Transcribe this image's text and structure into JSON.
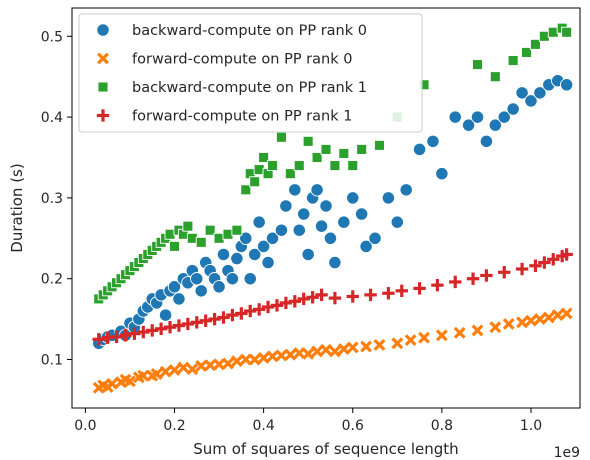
{
  "chart_data": {
    "type": "scatter",
    "xlabel": "Sum of squares of sequence length",
    "ylabel": "Duration (s)",
    "x_offset_label": "1e9",
    "xlim": [
      -0.03,
      1.11
    ],
    "ylim": [
      0.04,
      0.535
    ],
    "x_ticks": [
      0.0,
      0.2,
      0.4,
      0.6,
      0.8,
      1.0
    ],
    "x_tick_labels": [
      "0.0",
      "0.2",
      "0.4",
      "0.6",
      "0.8",
      "1.0"
    ],
    "y_ticks": [
      0.1,
      0.2,
      0.3,
      0.4,
      0.5
    ],
    "y_tick_labels": [
      "0.1",
      "0.2",
      "0.3",
      "0.4",
      "0.5"
    ],
    "legend_position": "upper-left",
    "series": [
      {
        "name": "backward-compute on PP rank 0",
        "marker": "circle",
        "color": "#1f77b4",
        "points": [
          [
            0.03,
            0.12
          ],
          [
            0.04,
            0.125
          ],
          [
            0.05,
            0.128
          ],
          [
            0.06,
            0.13
          ],
          [
            0.08,
            0.135
          ],
          [
            0.09,
            0.13
          ],
          [
            0.1,
            0.145
          ],
          [
            0.11,
            0.14
          ],
          [
            0.12,
            0.15
          ],
          [
            0.13,
            0.16
          ],
          [
            0.14,
            0.165
          ],
          [
            0.15,
            0.175
          ],
          [
            0.16,
            0.17
          ],
          [
            0.17,
            0.18
          ],
          [
            0.18,
            0.155
          ],
          [
            0.19,
            0.185
          ],
          [
            0.2,
            0.19
          ],
          [
            0.21,
            0.175
          ],
          [
            0.22,
            0.2
          ],
          [
            0.23,
            0.195
          ],
          [
            0.24,
            0.21
          ],
          [
            0.25,
            0.2
          ],
          [
            0.26,
            0.185
          ],
          [
            0.27,
            0.22
          ],
          [
            0.28,
            0.21
          ],
          [
            0.29,
            0.2
          ],
          [
            0.3,
            0.19
          ],
          [
            0.31,
            0.23
          ],
          [
            0.32,
            0.21
          ],
          [
            0.33,
            0.2
          ],
          [
            0.34,
            0.225
          ],
          [
            0.35,
            0.24
          ],
          [
            0.36,
            0.25
          ],
          [
            0.37,
            0.2
          ],
          [
            0.38,
            0.23
          ],
          [
            0.39,
            0.27
          ],
          [
            0.4,
            0.24
          ],
          [
            0.41,
            0.22
          ],
          [
            0.42,
            0.25
          ],
          [
            0.44,
            0.26
          ],
          [
            0.45,
            0.29
          ],
          [
            0.47,
            0.31
          ],
          [
            0.48,
            0.26
          ],
          [
            0.49,
            0.28
          ],
          [
            0.5,
            0.23
          ],
          [
            0.51,
            0.3
          ],
          [
            0.52,
            0.31
          ],
          [
            0.53,
            0.265
          ],
          [
            0.54,
            0.29
          ],
          [
            0.55,
            0.25
          ],
          [
            0.56,
            0.22
          ],
          [
            0.58,
            0.27
          ],
          [
            0.6,
            0.3
          ],
          [
            0.62,
            0.28
          ],
          [
            0.63,
            0.24
          ],
          [
            0.65,
            0.25
          ],
          [
            0.68,
            0.3
          ],
          [
            0.7,
            0.27
          ],
          [
            0.72,
            0.31
          ],
          [
            0.75,
            0.36
          ],
          [
            0.78,
            0.37
          ],
          [
            0.8,
            0.33
          ],
          [
            0.83,
            0.4
          ],
          [
            0.86,
            0.39
          ],
          [
            0.88,
            0.4
          ],
          [
            0.9,
            0.37
          ],
          [
            0.92,
            0.39
          ],
          [
            0.94,
            0.4
          ],
          [
            0.96,
            0.41
          ],
          [
            0.98,
            0.43
          ],
          [
            1.0,
            0.42
          ],
          [
            1.02,
            0.43
          ],
          [
            1.04,
            0.44
          ],
          [
            1.06,
            0.445
          ],
          [
            1.08,
            0.44
          ]
        ]
      },
      {
        "name": "forward-compute on PP rank 0",
        "marker": "x",
        "color": "#ff7f0e",
        "points": [
          [
            0.03,
            0.065
          ],
          [
            0.04,
            0.068
          ],
          [
            0.05,
            0.066
          ],
          [
            0.06,
            0.07
          ],
          [
            0.08,
            0.072
          ],
          [
            0.09,
            0.075
          ],
          [
            0.1,
            0.073
          ],
          [
            0.12,
            0.078
          ],
          [
            0.13,
            0.08
          ],
          [
            0.15,
            0.08
          ],
          [
            0.16,
            0.082
          ],
          [
            0.18,
            0.085
          ],
          [
            0.2,
            0.087
          ],
          [
            0.22,
            0.09
          ],
          [
            0.24,
            0.088
          ],
          [
            0.26,
            0.092
          ],
          [
            0.28,
            0.093
          ],
          [
            0.3,
            0.094
          ],
          [
            0.32,
            0.095
          ],
          [
            0.34,
            0.098
          ],
          [
            0.36,
            0.1
          ],
          [
            0.38,
            0.1
          ],
          [
            0.4,
            0.102
          ],
          [
            0.42,
            0.104
          ],
          [
            0.44,
            0.105
          ],
          [
            0.46,
            0.106
          ],
          [
            0.48,
            0.108
          ],
          [
            0.5,
            0.107
          ],
          [
            0.52,
            0.11
          ],
          [
            0.54,
            0.112
          ],
          [
            0.56,
            0.11
          ],
          [
            0.58,
            0.113
          ],
          [
            0.6,
            0.115
          ],
          [
            0.63,
            0.116
          ],
          [
            0.66,
            0.118
          ],
          [
            0.7,
            0.12
          ],
          [
            0.73,
            0.124
          ],
          [
            0.76,
            0.127
          ],
          [
            0.8,
            0.13
          ],
          [
            0.84,
            0.133
          ],
          [
            0.88,
            0.136
          ],
          [
            0.92,
            0.14
          ],
          [
            0.95,
            0.144
          ],
          [
            0.98,
            0.146
          ],
          [
            1.0,
            0.148
          ],
          [
            1.02,
            0.15
          ],
          [
            1.04,
            0.152
          ],
          [
            1.06,
            0.155
          ],
          [
            1.08,
            0.157
          ]
        ]
      },
      {
        "name": "backward-compute on PP rank 1",
        "marker": "square",
        "color": "#2ca02c",
        "points": [
          [
            0.03,
            0.175
          ],
          [
            0.04,
            0.18
          ],
          [
            0.05,
            0.185
          ],
          [
            0.06,
            0.19
          ],
          [
            0.07,
            0.195
          ],
          [
            0.08,
            0.2
          ],
          [
            0.09,
            0.205
          ],
          [
            0.1,
            0.21
          ],
          [
            0.11,
            0.215
          ],
          [
            0.12,
            0.22
          ],
          [
            0.13,
            0.225
          ],
          [
            0.14,
            0.23
          ],
          [
            0.15,
            0.235
          ],
          [
            0.16,
            0.24
          ],
          [
            0.17,
            0.245
          ],
          [
            0.18,
            0.25
          ],
          [
            0.19,
            0.255
          ],
          [
            0.2,
            0.24
          ],
          [
            0.21,
            0.26
          ],
          [
            0.22,
            0.255
          ],
          [
            0.23,
            0.265
          ],
          [
            0.24,
            0.25
          ],
          [
            0.26,
            0.245
          ],
          [
            0.28,
            0.26
          ],
          [
            0.3,
            0.25
          ],
          [
            0.32,
            0.255
          ],
          [
            0.34,
            0.26
          ],
          [
            0.36,
            0.31
          ],
          [
            0.37,
            0.33
          ],
          [
            0.38,
            0.32
          ],
          [
            0.39,
            0.335
          ],
          [
            0.4,
            0.35
          ],
          [
            0.41,
            0.33
          ],
          [
            0.42,
            0.34
          ],
          [
            0.44,
            0.375
          ],
          [
            0.46,
            0.33
          ],
          [
            0.48,
            0.34
          ],
          [
            0.5,
            0.37
          ],
          [
            0.52,
            0.35
          ],
          [
            0.54,
            0.36
          ],
          [
            0.56,
            0.34
          ],
          [
            0.58,
            0.355
          ],
          [
            0.6,
            0.34
          ],
          [
            0.62,
            0.36
          ],
          [
            0.66,
            0.365
          ],
          [
            0.7,
            0.4
          ],
          [
            0.76,
            0.44
          ],
          [
            0.88,
            0.465
          ],
          [
            0.92,
            0.45
          ],
          [
            0.96,
            0.47
          ],
          [
            0.99,
            0.48
          ],
          [
            1.01,
            0.49
          ],
          [
            1.03,
            0.5
          ],
          [
            1.05,
            0.505
          ],
          [
            1.07,
            0.51
          ],
          [
            1.08,
            0.505
          ]
        ]
      },
      {
        "name": "forward-compute on PP rank 1",
        "marker": "plus",
        "color": "#d62728",
        "points": [
          [
            0.03,
            0.125
          ],
          [
            0.05,
            0.127
          ],
          [
            0.07,
            0.128
          ],
          [
            0.09,
            0.13
          ],
          [
            0.11,
            0.132
          ],
          [
            0.13,
            0.134
          ],
          [
            0.15,
            0.136
          ],
          [
            0.17,
            0.138
          ],
          [
            0.19,
            0.14
          ],
          [
            0.21,
            0.142
          ],
          [
            0.23,
            0.144
          ],
          [
            0.25,
            0.146
          ],
          [
            0.27,
            0.148
          ],
          [
            0.29,
            0.15
          ],
          [
            0.31,
            0.152
          ],
          [
            0.33,
            0.155
          ],
          [
            0.35,
            0.157
          ],
          [
            0.37,
            0.16
          ],
          [
            0.39,
            0.162
          ],
          [
            0.41,
            0.165
          ],
          [
            0.43,
            0.167
          ],
          [
            0.45,
            0.17
          ],
          [
            0.47,
            0.172
          ],
          [
            0.49,
            0.175
          ],
          [
            0.51,
            0.177
          ],
          [
            0.53,
            0.18
          ],
          [
            0.56,
            0.176
          ],
          [
            0.6,
            0.178
          ],
          [
            0.64,
            0.18
          ],
          [
            0.68,
            0.182
          ],
          [
            0.71,
            0.185
          ],
          [
            0.75,
            0.188
          ],
          [
            0.79,
            0.192
          ],
          [
            0.83,
            0.196
          ],
          [
            0.87,
            0.2
          ],
          [
            0.9,
            0.204
          ],
          [
            0.94,
            0.208
          ],
          [
            0.98,
            0.212
          ],
          [
            1.01,
            0.216
          ],
          [
            1.03,
            0.22
          ],
          [
            1.05,
            0.224
          ],
          [
            1.07,
            0.228
          ],
          [
            1.08,
            0.23
          ]
        ]
      }
    ]
  }
}
